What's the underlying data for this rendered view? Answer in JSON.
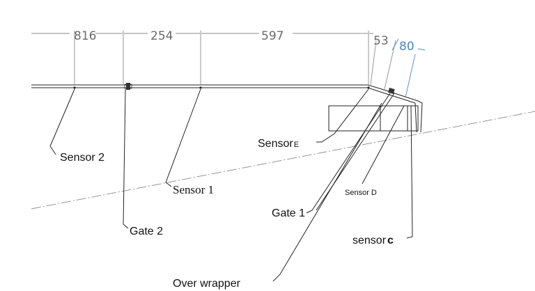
{
  "dimensions": {
    "d1": "816",
    "d2": "254",
    "d3": "597",
    "d4": "53",
    "d5": "80"
  },
  "labels": {
    "sensor2": "Sensor 2",
    "sensor1": "Sensor 1",
    "gate2": "Gate 2",
    "sensorE_main": "Sensor",
    "sensorE_sub": "E",
    "gate1": "Gate 1",
    "sensorD": "Sensor D",
    "sensorC_main": "sensor",
    "sensorC_sub": "c",
    "overWrapper": "Over wrapper"
  },
  "colors": {
    "line": "#222222",
    "dimension": "#6b6b6b",
    "accent_dimension": "#4a86c0"
  }
}
